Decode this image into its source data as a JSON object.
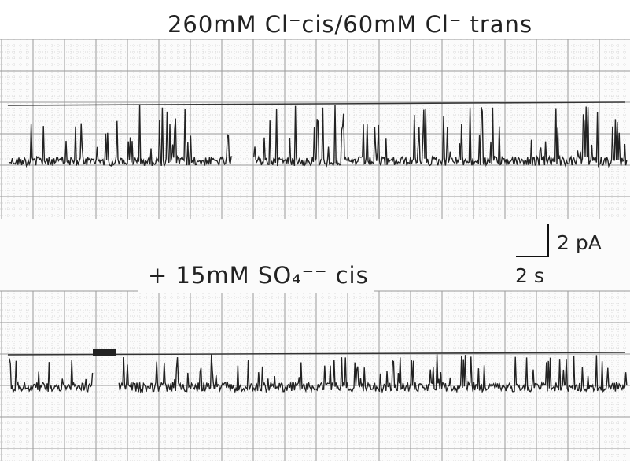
{
  "figure": {
    "top_label": "260mM Cl⁻cis/60mM Cl⁻ trans",
    "bottom_label": "+ 15mM SO₄⁻⁻ cis",
    "scale_current": "2 pA",
    "scale_time": "2 s"
  }
}
